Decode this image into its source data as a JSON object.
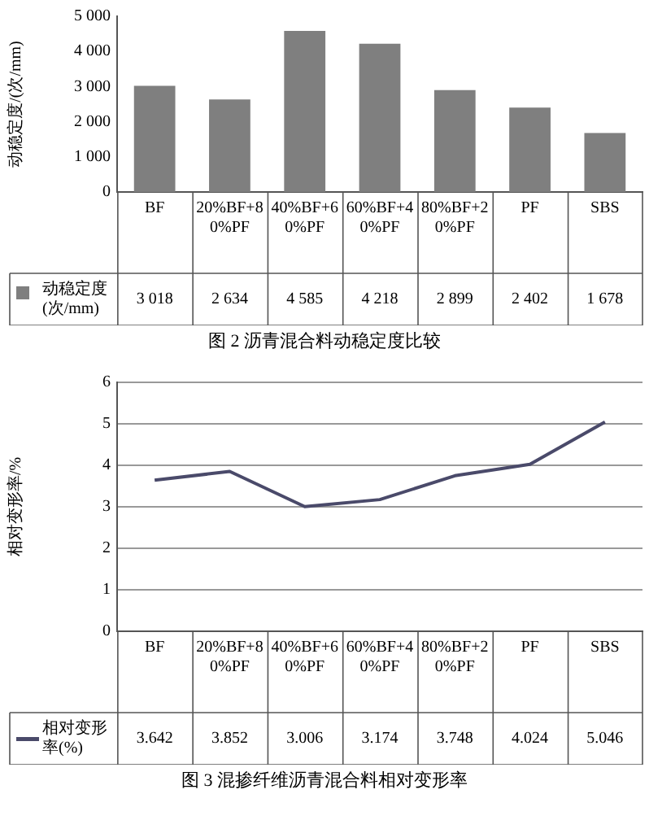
{
  "chart_data": [
    {
      "type": "bar",
      "title": "图 2  沥青混合料动稳定度比较",
      "ylabel": "动稳定度/(次/mm)",
      "categories": [
        "BF",
        "20%BF+80%PF",
        "40%BF+60%PF",
        "60%BF+40%PF",
        "80%BF+20%PF",
        "PF",
        "SBS"
      ],
      "series": [
        {
          "name": "动稳定度(次/mm)",
          "color": "#7f7f7f",
          "values": [
            3018,
            2634,
            4585,
            4218,
            2899,
            2402,
            1678
          ],
          "value_labels": [
            "3 018",
            "2 634",
            "4 585",
            "4 218",
            "2 899",
            "2 402",
            "1 678"
          ]
        }
      ],
      "ylim": [
        0,
        5000
      ],
      "yticks": [
        0,
        {
          "value": 1000,
          "label": "1 000"
        },
        {
          "value": 2000,
          "label": "2 000"
        },
        {
          "value": 3000,
          "label": "3 000"
        },
        {
          "value": 4000,
          "label": "4 000"
        },
        {
          "value": 5000,
          "label": "5 000"
        }
      ],
      "grid": false,
      "legend": "bottom"
    },
    {
      "type": "line",
      "title": "图 3  混掺纤维沥青混合料相对变形率",
      "ylabel": "相对变形率/%",
      "categories": [
        "BF",
        "20%BF+80%PF",
        "40%BF+60%PF",
        "60%BF+40%PF",
        "80%BF+20%PF",
        "PF",
        "SBS"
      ],
      "series": [
        {
          "name": "相对变形率(%)",
          "color": "#4a4a6a",
          "values": [
            3.642,
            3.852,
            3.006,
            3.174,
            3.748,
            4.024,
            5.046
          ],
          "value_labels": [
            "3.642",
            "3.852",
            "3.006",
            "3.174",
            "3.748",
            "4.024",
            "5.046"
          ]
        }
      ],
      "ylim": [
        0,
        6
      ],
      "yticks": [
        0,
        1,
        2,
        3,
        4,
        5,
        6
      ],
      "grid": "y",
      "legend": "bottom",
      "marker": "none",
      "line_style": "solid"
    }
  ]
}
